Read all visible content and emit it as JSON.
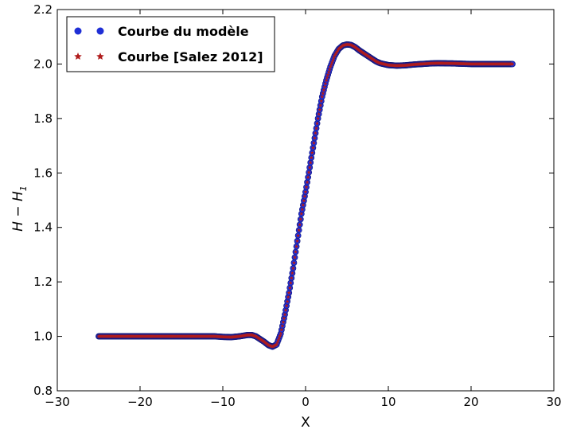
{
  "chart_data": {
    "type": "scatter",
    "title": "",
    "xlabel": "X",
    "ylabel_parts": {
      "main": "H − H",
      "subscript": "1"
    },
    "xlim": [
      -30,
      30
    ],
    "ylim": [
      0.8,
      2.2
    ],
    "xticks": [
      -30,
      -20,
      -10,
      0,
      10,
      20,
      30
    ],
    "yticks": [
      0.8,
      1.0,
      1.2,
      1.4,
      1.6,
      1.8,
      2.0,
      2.2
    ],
    "xtick_labels": [
      "−30",
      "−20",
      "−10",
      "0",
      "10",
      "20",
      "30"
    ],
    "ytick_labels": [
      "0.8",
      "1.0",
      "1.2",
      "1.4",
      "1.6",
      "1.8",
      "2.0",
      "2.2"
    ],
    "legend_position": "top-left",
    "grid": false,
    "series": [
      {
        "name": "Courbe du modèle",
        "marker": "circle",
        "color": "#1f2fd6",
        "x": [
          -25,
          -22,
          -19,
          -16,
          -13,
          -11,
          -10,
          -9,
          -8,
          -7,
          -6.5,
          -6,
          -5.5,
          -5,
          -4.5,
          -4,
          -3.5,
          -3,
          -2.5,
          -2,
          -1.5,
          -1,
          -0.5,
          0,
          0.5,
          1,
          1.5,
          2,
          2.5,
          3,
          3.5,
          4,
          4.5,
          5,
          5.5,
          6,
          6.5,
          7,
          7.5,
          8,
          8.5,
          9,
          10,
          11,
          12,
          13,
          14,
          15,
          16,
          18,
          20,
          22,
          25
        ],
        "y": [
          1.0,
          1.0,
          1.0,
          1.0,
          1.0,
          1.0,
          0.998,
          0.997,
          1.0,
          1.005,
          1.005,
          1.0,
          0.99,
          0.98,
          0.968,
          0.962,
          0.97,
          1.01,
          1.08,
          1.16,
          1.25,
          1.35,
          1.45,
          1.53,
          1.62,
          1.71,
          1.8,
          1.88,
          1.94,
          1.99,
          2.03,
          2.055,
          2.068,
          2.072,
          2.07,
          2.062,
          2.05,
          2.04,
          2.03,
          2.02,
          2.01,
          2.003,
          1.996,
          1.994,
          1.995,
          1.998,
          2.0,
          2.002,
          2.003,
          2.002,
          2.0,
          2.0,
          2.0
        ]
      },
      {
        "name": "Courbe [Salez 2012]",
        "marker": "star",
        "color": "#b01c1c",
        "x": [
          -25,
          -22,
          -19,
          -16,
          -13,
          -11,
          -10,
          -9,
          -8,
          -7,
          -6.5,
          -6,
          -5.5,
          -5,
          -4.5,
          -4,
          -3.5,
          -3,
          -2.5,
          -2,
          -1.5,
          -1,
          -0.5,
          0,
          0.5,
          1,
          1.5,
          2,
          2.5,
          3,
          3.5,
          4,
          4.5,
          5,
          5.5,
          6,
          6.5,
          7,
          7.5,
          8,
          8.5,
          9,
          10,
          11,
          12,
          13,
          14,
          15,
          16,
          18,
          20,
          22,
          25
        ],
        "y": [
          1.0,
          1.0,
          1.0,
          1.0,
          1.0,
          1.0,
          0.998,
          0.997,
          1.0,
          1.005,
          1.005,
          1.0,
          0.99,
          0.98,
          0.968,
          0.962,
          0.97,
          1.01,
          1.08,
          1.16,
          1.25,
          1.35,
          1.45,
          1.53,
          1.62,
          1.71,
          1.8,
          1.88,
          1.94,
          1.99,
          2.03,
          2.055,
          2.068,
          2.072,
          2.07,
          2.062,
          2.05,
          2.04,
          2.03,
          2.02,
          2.01,
          2.003,
          1.996,
          1.994,
          1.995,
          1.998,
          2.0,
          2.002,
          2.003,
          2.002,
          2.0,
          2.0,
          2.0
        ]
      }
    ]
  }
}
